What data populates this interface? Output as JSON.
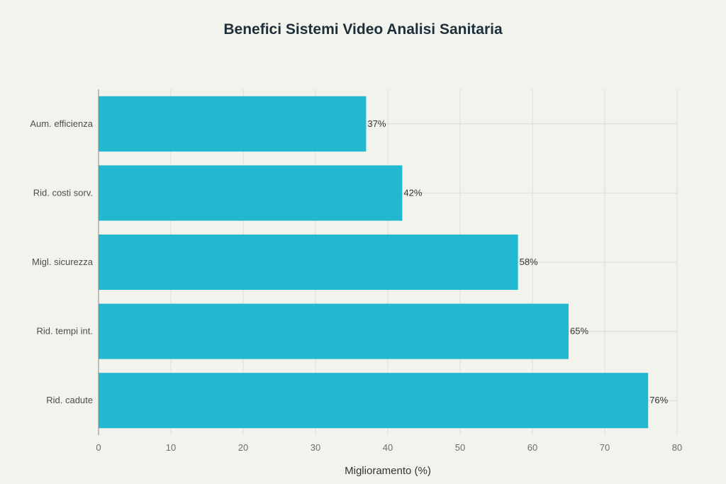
{
  "chart_data": {
    "type": "bar",
    "orientation": "horizontal",
    "title": "Benefici Sistemi Video Analisi Sanitaria",
    "xlabel": "Miglioramento (%)",
    "ylabel": "",
    "categories": [
      "Aum. efficienza",
      "Rid. costi sorv.",
      "Migl. sicurezza",
      "Rid. tempi int.",
      "Rid. cadute"
    ],
    "values": [
      37,
      42,
      58,
      65,
      76
    ],
    "data_labels": [
      "37%",
      "42%",
      "58%",
      "65%",
      "76%"
    ],
    "xlim": [
      0,
      80
    ],
    "xticks": [
      0,
      10,
      20,
      30,
      40,
      50,
      60,
      70,
      80
    ],
    "grid": true,
    "bar_color": "#22b8cf",
    "background_color": "#f3f3ee"
  }
}
